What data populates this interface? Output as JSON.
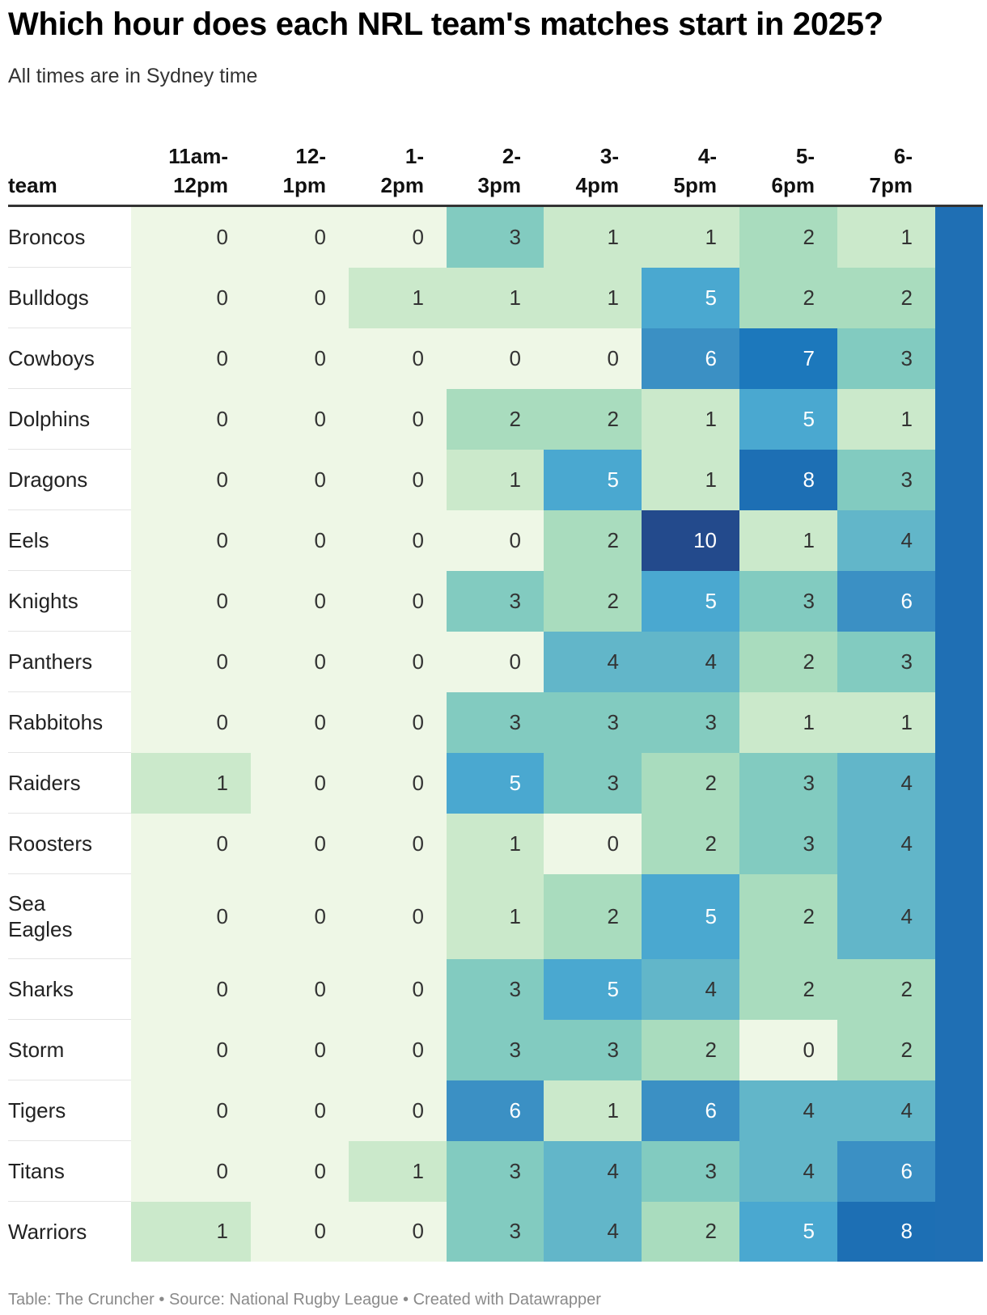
{
  "title": "Which hour does each NRL team's matches start in 2025?",
  "subtitle": "All times are in Sydney time",
  "footer": "Table: The Cruncher • Source: National Rugby League • Created with Datawrapper",
  "colors": {
    "scale": [
      "#eef7e6",
      "#cbe9cb",
      "#a9dcbe",
      "#82cbc0",
      "#62b6c9",
      "#4aa8d0",
      "#3b90c4",
      "#1c78bc",
      "#1d6fb4",
      "#1a63a9",
      "#234a8c"
    ]
  },
  "chart_data": {
    "type": "table",
    "title": "Which hour does each NRL team's matches start in 2025?",
    "subtitle": "All times are in Sydney time",
    "team_header": "team",
    "columns": [
      [
        "11am-",
        "12pm"
      ],
      [
        "12-",
        "1pm"
      ],
      [
        "1-",
        "2pm"
      ],
      [
        "2-",
        "3pm"
      ],
      [
        "3-",
        "4pm"
      ],
      [
        "4-",
        "5pm"
      ],
      [
        "5-",
        "6pm"
      ],
      [
        "6-",
        "7pm"
      ]
    ],
    "rows": [
      {
        "team": "Broncos",
        "values": [
          0,
          0,
          0,
          3,
          1,
          1,
          2,
          1
        ]
      },
      {
        "team": "Bulldogs",
        "values": [
          0,
          0,
          1,
          1,
          1,
          5,
          2,
          2
        ]
      },
      {
        "team": "Cowboys",
        "values": [
          0,
          0,
          0,
          0,
          0,
          6,
          7,
          3
        ]
      },
      {
        "team": "Dolphins",
        "values": [
          0,
          0,
          0,
          2,
          2,
          1,
          5,
          1
        ]
      },
      {
        "team": "Dragons",
        "values": [
          0,
          0,
          0,
          1,
          5,
          1,
          8,
          3
        ]
      },
      {
        "team": "Eels",
        "values": [
          0,
          0,
          0,
          0,
          2,
          10,
          1,
          4
        ]
      },
      {
        "team": "Knights",
        "values": [
          0,
          0,
          0,
          3,
          2,
          5,
          3,
          6
        ]
      },
      {
        "team": "Panthers",
        "values": [
          0,
          0,
          0,
          0,
          4,
          4,
          2,
          3
        ]
      },
      {
        "team": "Rabbitohs",
        "values": [
          0,
          0,
          0,
          3,
          3,
          3,
          1,
          1
        ]
      },
      {
        "team": "Raiders",
        "values": [
          1,
          0,
          0,
          5,
          3,
          2,
          3,
          4
        ]
      },
      {
        "team": "Roosters",
        "values": [
          0,
          0,
          0,
          1,
          0,
          2,
          3,
          4
        ]
      },
      {
        "team": [
          "Sea",
          "Eagles"
        ],
        "values": [
          0,
          0,
          0,
          1,
          2,
          5,
          2,
          4
        ]
      },
      {
        "team": "Sharks",
        "values": [
          0,
          0,
          0,
          3,
          5,
          4,
          2,
          2
        ]
      },
      {
        "team": "Storm",
        "values": [
          0,
          0,
          0,
          3,
          3,
          2,
          0,
          2
        ]
      },
      {
        "team": "Tigers",
        "values": [
          0,
          0,
          0,
          6,
          1,
          6,
          4,
          4
        ]
      },
      {
        "team": "Titans",
        "values": [
          0,
          0,
          1,
          3,
          4,
          3,
          4,
          6
        ]
      },
      {
        "team": "Warriors",
        "values": [
          1,
          0,
          0,
          3,
          4,
          2,
          5,
          8
        ]
      }
    ],
    "value_range": [
      0,
      10
    ]
  }
}
